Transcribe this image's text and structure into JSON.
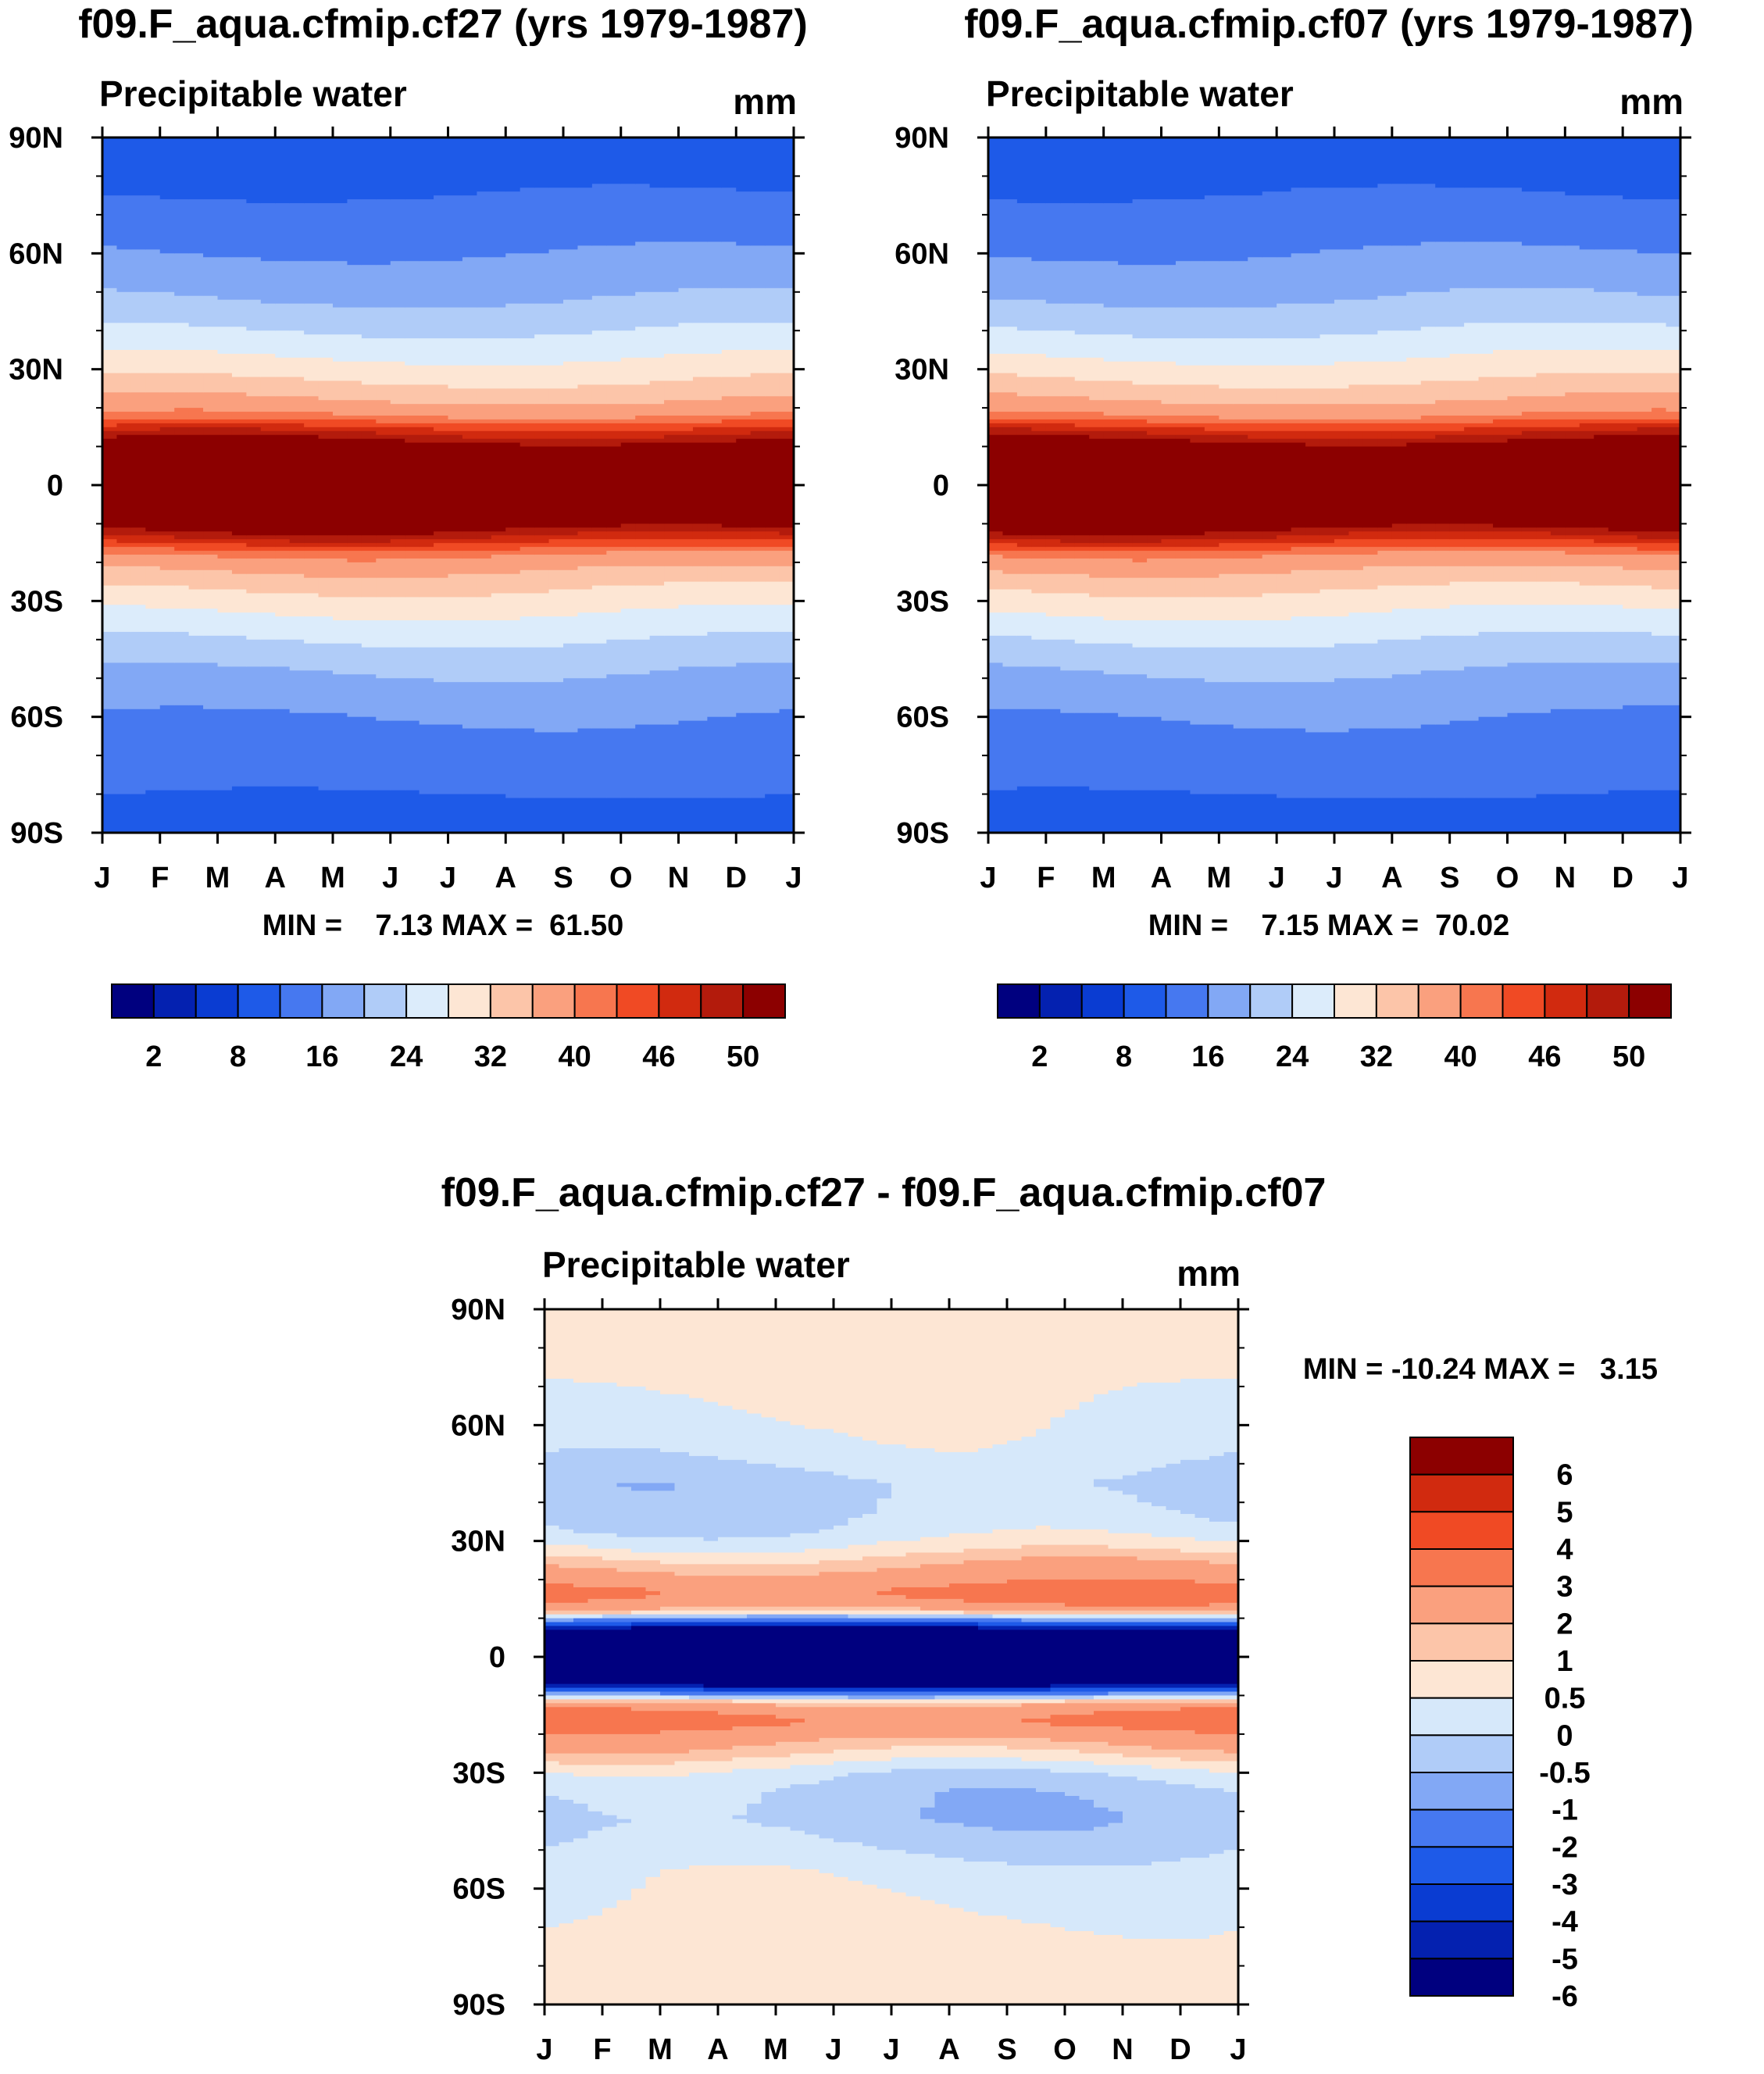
{
  "colors": {
    "abs": [
      "#00007f",
      "#0421b0",
      "#0a3cd2",
      "#1e5ae8",
      "#4678f0",
      "#82a8f5",
      "#b0ccf8",
      "#dcecfb",
      "#fde6d4",
      "#fcc5a9",
      "#faa07e",
      "#f7764f",
      "#f04a24",
      "#d12a0f",
      "#b31b0c",
      "#8c0000"
    ],
    "diff": [
      "#00007f",
      "#0421b0",
      "#0a3cd2",
      "#1e5ae8",
      "#4678f0",
      "#82a8f5",
      "#b0ccf8",
      "#d6e8fa",
      "#fde6d4",
      "#fcc5a9",
      "#faa07e",
      "#f7764f",
      "#f04a24",
      "#d12a0f",
      "#8c0000"
    ]
  },
  "panels": [
    {
      "title": "f09.F_aqua.cfmip.cf27 (yrs 1979-1987)",
      "subtitle": "Precipitable water",
      "units": "mm",
      "minmax": "MIN =    7.13 MAX =  61.50"
    },
    {
      "title": "f09.F_aqua.cfmip.cf07 (yrs 1979-1987)",
      "subtitle": "Precipitable water",
      "units": "mm",
      "minmax": "MIN =    7.15 MAX =  70.02"
    },
    {
      "title": "f09.F_aqua.cfmip.cf27 - f09.F_aqua.cfmip.cf07",
      "subtitle": "Precipitable water",
      "units": "mm",
      "minmax": "MIN = -10.24 MAX =   3.15"
    }
  ],
  "chart_data": [
    {
      "type": "heatmap",
      "title": "f09.F_aqua.cfmip.cf27 (yrs 1979-1987)",
      "subtitle": "Precipitable water",
      "units": "mm",
      "xlabel": "",
      "ylabel": "",
      "x_ticks": [
        "J",
        "F",
        "M",
        "A",
        "M",
        "J",
        "J",
        "A",
        "S",
        "O",
        "N",
        "D",
        "J"
      ],
      "y_ticks": [
        "90N",
        "60N",
        "30N",
        "0",
        "30S",
        "60S",
        "90S"
      ],
      "ylim": [
        -90,
        90
      ],
      "contour_levels": [
        2,
        5,
        8,
        12,
        16,
        20,
        24,
        28,
        32,
        36,
        40,
        43,
        46,
        48,
        50
      ],
      "colorbar_labels": [
        "2",
        "8",
        "16",
        "24",
        "32",
        "40",
        "46",
        "50"
      ],
      "min": 7.13,
      "max": 61.5,
      "zonal_profile": {
        "lat": [
          -90,
          -75,
          -60,
          -48,
          -40,
          -33,
          -27,
          -22,
          -18,
          -15,
          -10,
          0,
          10,
          15,
          18,
          22,
          27,
          33,
          40,
          48,
          60,
          75,
          90
        ],
        "value": [
          10,
          13,
          16,
          20,
          24,
          28,
          32,
          36,
          40,
          46,
          52,
          60,
          52,
          46,
          40,
          36,
          32,
          28,
          24,
          20,
          16,
          12,
          10
        ]
      }
    },
    {
      "type": "heatmap",
      "title": "f09.F_aqua.cfmip.cf07 (yrs 1979-1987)",
      "subtitle": "Precipitable water",
      "units": "mm",
      "xlabel": "",
      "ylabel": "",
      "x_ticks": [
        "J",
        "F",
        "M",
        "A",
        "M",
        "J",
        "J",
        "A",
        "S",
        "O",
        "N",
        "D",
        "J"
      ],
      "y_ticks": [
        "90N",
        "60N",
        "30N",
        "0",
        "30S",
        "60S",
        "90S"
      ],
      "ylim": [
        -90,
        90
      ],
      "contour_levels": [
        2,
        5,
        8,
        12,
        16,
        20,
        24,
        28,
        32,
        36,
        40,
        43,
        46,
        48,
        50
      ],
      "colorbar_labels": [
        "2",
        "8",
        "16",
        "24",
        "32",
        "40",
        "46",
        "50"
      ],
      "min": 7.15,
      "max": 70.02,
      "zonal_profile": {
        "lat": [
          -90,
          -75,
          -60,
          -48,
          -40,
          -33,
          -27,
          -22,
          -18,
          -15,
          -10,
          0,
          10,
          15,
          18,
          22,
          27,
          33,
          40,
          48,
          60,
          75,
          90
        ],
        "value": [
          10,
          13,
          16,
          20,
          24,
          28,
          32,
          36,
          40,
          46,
          52,
          62,
          52,
          46,
          40,
          36,
          32,
          28,
          24,
          20,
          16,
          12,
          10
        ]
      }
    },
    {
      "type": "heatmap",
      "title": "f09.F_aqua.cfmip.cf27 - f09.F_aqua.cfmip.cf07",
      "subtitle": "Precipitable water",
      "units": "mm",
      "xlabel": "",
      "ylabel": "",
      "x_ticks": [
        "J",
        "F",
        "M",
        "A",
        "M",
        "J",
        "J",
        "A",
        "S",
        "O",
        "N",
        "D",
        "J"
      ],
      "y_ticks": [
        "90N",
        "60N",
        "30N",
        "0",
        "30S",
        "60S",
        "90S"
      ],
      "ylim": [
        -90,
        90
      ],
      "contour_levels": [
        -6,
        -5,
        -4,
        -3,
        -2,
        -1,
        -0.5,
        0,
        0.5,
        1,
        2,
        3,
        4,
        5,
        6
      ],
      "colorbar_labels": [
        "6",
        "5",
        "4",
        "3",
        "2",
        "1",
        "0.5",
        "0",
        "-0.5",
        "-1",
        "-2",
        "-3",
        "-4",
        "-5",
        "-6"
      ],
      "min": -10.24,
      "max": 3.15,
      "zonal_profile": {
        "lat": [
          -90,
          -70,
          -55,
          -48,
          -42,
          -35,
          -30,
          -25,
          -21,
          -17,
          -15,
          -13,
          -11,
          -9,
          -6,
          0,
          6,
          9,
          11,
          13,
          15,
          17,
          20,
          24,
          28,
          32,
          38,
          45,
          52,
          60,
          75,
          90
        ],
        "value": [
          0.3,
          0.1,
          -0.2,
          -0.6,
          -0.8,
          -0.7,
          -0.3,
          0.6,
          1.3,
          2.3,
          2.1,
          1.5,
          0.2,
          -3,
          -9,
          -10,
          -9,
          -3,
          0.2,
          1.5,
          2.1,
          2.3,
          1.6,
          0.9,
          0.2,
          -0.3,
          -0.6,
          -0.7,
          -0.3,
          -0.1,
          0.2,
          0.3
        ]
      }
    }
  ]
}
